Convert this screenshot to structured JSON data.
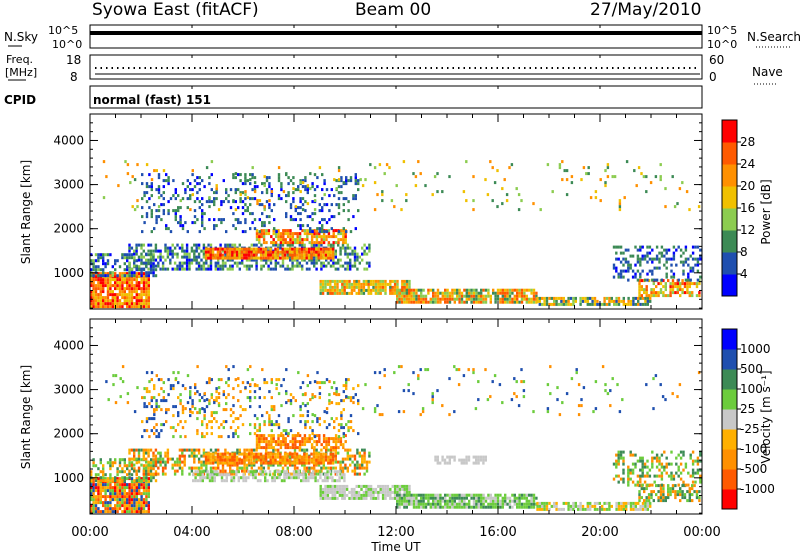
{
  "header": {
    "station": "Syowa East (fitACF)",
    "beam": "Beam 00",
    "date": "27/May/2010"
  },
  "top_panels": {
    "nsky_label": "N.Sky",
    "nsearch_label": "N.Search",
    "nsky_ticks": [
      "10^5",
      "10^0"
    ],
    "nsearch_ticks": [
      "10^5",
      "10^0"
    ],
    "freq_label_1": "Freq.",
    "freq_label_2": "[MHz]",
    "freq_ticks": [
      "18",
      "8"
    ],
    "nave_label": "Nave",
    "nave_ticks": [
      "60",
      "0"
    ],
    "cpid_label": "CPID",
    "cpid_value": "normal (fast) 151"
  },
  "colors": {
    "power": [
      "#0000ff",
      "#1f4faf",
      "#3c8a55",
      "#8ccc50",
      "#f0c000",
      "#ff9000",
      "#ff5a00",
      "#ff0000"
    ],
    "velocity": [
      "#ff0000",
      "#ff5a00",
      "#ff9000",
      "#ffb000",
      "#c8c8c8",
      "#6ccc3c",
      "#3c8a55",
      "#1f4faf",
      "#0000ff"
    ]
  },
  "chart_data": [
    {
      "type": "heatmap",
      "panel": "power",
      "ylabel": "Slant Range [km]",
      "xlabel": "Time UT",
      "x_ticks": [
        "00:00",
        "04:00",
        "08:00",
        "12:00",
        "16:00",
        "20:00",
        "00:00"
      ],
      "y_ticks": [
        "1000",
        "2000",
        "3000",
        "4000"
      ],
      "xlim_hours": [
        0,
        24
      ],
      "ylim_km": [
        180,
        4600
      ],
      "colorbar_label": "Power [dB]",
      "colorbar_ticks": [
        "4",
        "8",
        "12",
        "16",
        "20",
        "24",
        "28"
      ],
      "range_min": 0,
      "range_max": 32,
      "bands": [
        {
          "t0": 0.0,
          "t1": 2.3,
          "r0": 200,
          "r1": 950,
          "density": 0.92,
          "vmin": 16,
          "vmax": 32
        },
        {
          "t0": 0.0,
          "t1": 2.6,
          "r0": 900,
          "r1": 1400,
          "density": 0.55,
          "vmin": 2,
          "vmax": 14
        },
        {
          "t0": 1.5,
          "t1": 11.0,
          "r0": 1050,
          "r1": 1650,
          "density": 0.55,
          "vmin": 2,
          "vmax": 16
        },
        {
          "t0": 4.5,
          "t1": 9.5,
          "r0": 1300,
          "r1": 1550,
          "density": 0.95,
          "vmin": 16,
          "vmax": 30
        },
        {
          "t0": 6.5,
          "t1": 10.0,
          "r0": 1650,
          "r1": 1950,
          "density": 0.8,
          "vmin": 14,
          "vmax": 30
        },
        {
          "t0": 2.0,
          "t1": 10.5,
          "r0": 1900,
          "r1": 3200,
          "density": 0.22,
          "vmin": 2,
          "vmax": 12
        },
        {
          "t0": 9.0,
          "t1": 12.5,
          "r0": 500,
          "r1": 800,
          "density": 0.85,
          "vmin": 10,
          "vmax": 26
        },
        {
          "t0": 12.0,
          "t1": 17.5,
          "r0": 300,
          "r1": 600,
          "density": 0.85,
          "vmin": 8,
          "vmax": 28
        },
        {
          "t0": 17.5,
          "t1": 22.0,
          "r0": 250,
          "r1": 450,
          "density": 0.8,
          "vmin": 6,
          "vmax": 24
        },
        {
          "t0": 21.5,
          "t1": 24.0,
          "r0": 450,
          "r1": 800,
          "density": 0.6,
          "vmin": 12,
          "vmax": 30
        },
        {
          "t0": 20.5,
          "t1": 24.0,
          "r0": 800,
          "r1": 1600,
          "density": 0.35,
          "vmin": 2,
          "vmax": 12
        },
        {
          "t0": 0.5,
          "t1": 24.0,
          "r0": 2400,
          "r1": 3500,
          "density": 0.04,
          "vmin": 8,
          "vmax": 24
        }
      ]
    },
    {
      "type": "heatmap",
      "panel": "velocity",
      "ylabel": "Slant Range [km]",
      "xlabel": "Time UT",
      "x_ticks": [
        "00:00",
        "04:00",
        "08:00",
        "12:00",
        "16:00",
        "20:00",
        "00:00"
      ],
      "y_ticks": [
        "1000",
        "2000",
        "3000",
        "4000"
      ],
      "xlim_hours": [
        0,
        24
      ],
      "ylim_km": [
        180,
        4600
      ],
      "colorbar_label": "Velocity [m s⁻¹]",
      "colorbar_ticks": [
        "-1000",
        "-500",
        "-100",
        "-25",
        "25",
        "100",
        "500",
        "1000"
      ],
      "bands": [
        {
          "t0": 0.0,
          "t1": 2.3,
          "r0": 200,
          "r1": 950,
          "density": 0.92,
          "classes": [
            0,
            1,
            2,
            3,
            5,
            7
          ]
        },
        {
          "t0": 0.0,
          "t1": 2.6,
          "r0": 900,
          "r1": 1400,
          "density": 0.5,
          "classes": [
            2,
            3,
            5,
            6
          ]
        },
        {
          "t0": 1.5,
          "t1": 11.0,
          "r0": 1050,
          "r1": 1650,
          "density": 0.55,
          "classes": [
            1,
            2,
            3,
            5,
            6
          ]
        },
        {
          "t0": 4.5,
          "t1": 9.5,
          "r0": 1300,
          "r1": 1550,
          "density": 0.9,
          "classes": [
            1,
            2,
            3
          ]
        },
        {
          "t0": 6.5,
          "t1": 10.0,
          "r0": 1650,
          "r1": 1950,
          "density": 0.75,
          "classes": [
            1,
            2,
            3
          ]
        },
        {
          "t0": 2.0,
          "t1": 10.5,
          "r0": 1900,
          "r1": 3200,
          "density": 0.2,
          "classes": [
            2,
            3,
            5,
            7
          ]
        },
        {
          "t0": 4.0,
          "t1": 10.0,
          "r0": 900,
          "r1": 1150,
          "density": 0.6,
          "classes": [
            4,
            4,
            5
          ]
        },
        {
          "t0": 9.0,
          "t1": 12.5,
          "r0": 500,
          "r1": 800,
          "density": 0.85,
          "classes": [
            4,
            4,
            5
          ]
        },
        {
          "t0": 12.0,
          "t1": 17.5,
          "r0": 300,
          "r1": 600,
          "density": 0.85,
          "classes": [
            4,
            5,
            5,
            6
          ]
        },
        {
          "t0": 17.5,
          "t1": 22.0,
          "r0": 250,
          "r1": 450,
          "density": 0.8,
          "classes": [
            4,
            5,
            3
          ]
        },
        {
          "t0": 21.5,
          "t1": 24.0,
          "r0": 450,
          "r1": 800,
          "density": 0.6,
          "classes": [
            5,
            6,
            2
          ]
        },
        {
          "t0": 20.5,
          "t1": 24.0,
          "r0": 800,
          "r1": 1600,
          "density": 0.35,
          "classes": [
            2,
            5,
            6
          ]
        },
        {
          "t0": 13.5,
          "t1": 15.5,
          "r0": 1300,
          "r1": 1500,
          "density": 0.7,
          "classes": [
            4
          ]
        },
        {
          "t0": 0.5,
          "t1": 24.0,
          "r0": 2400,
          "r1": 3500,
          "density": 0.04,
          "classes": [
            2,
            5,
            7
          ]
        }
      ]
    }
  ]
}
